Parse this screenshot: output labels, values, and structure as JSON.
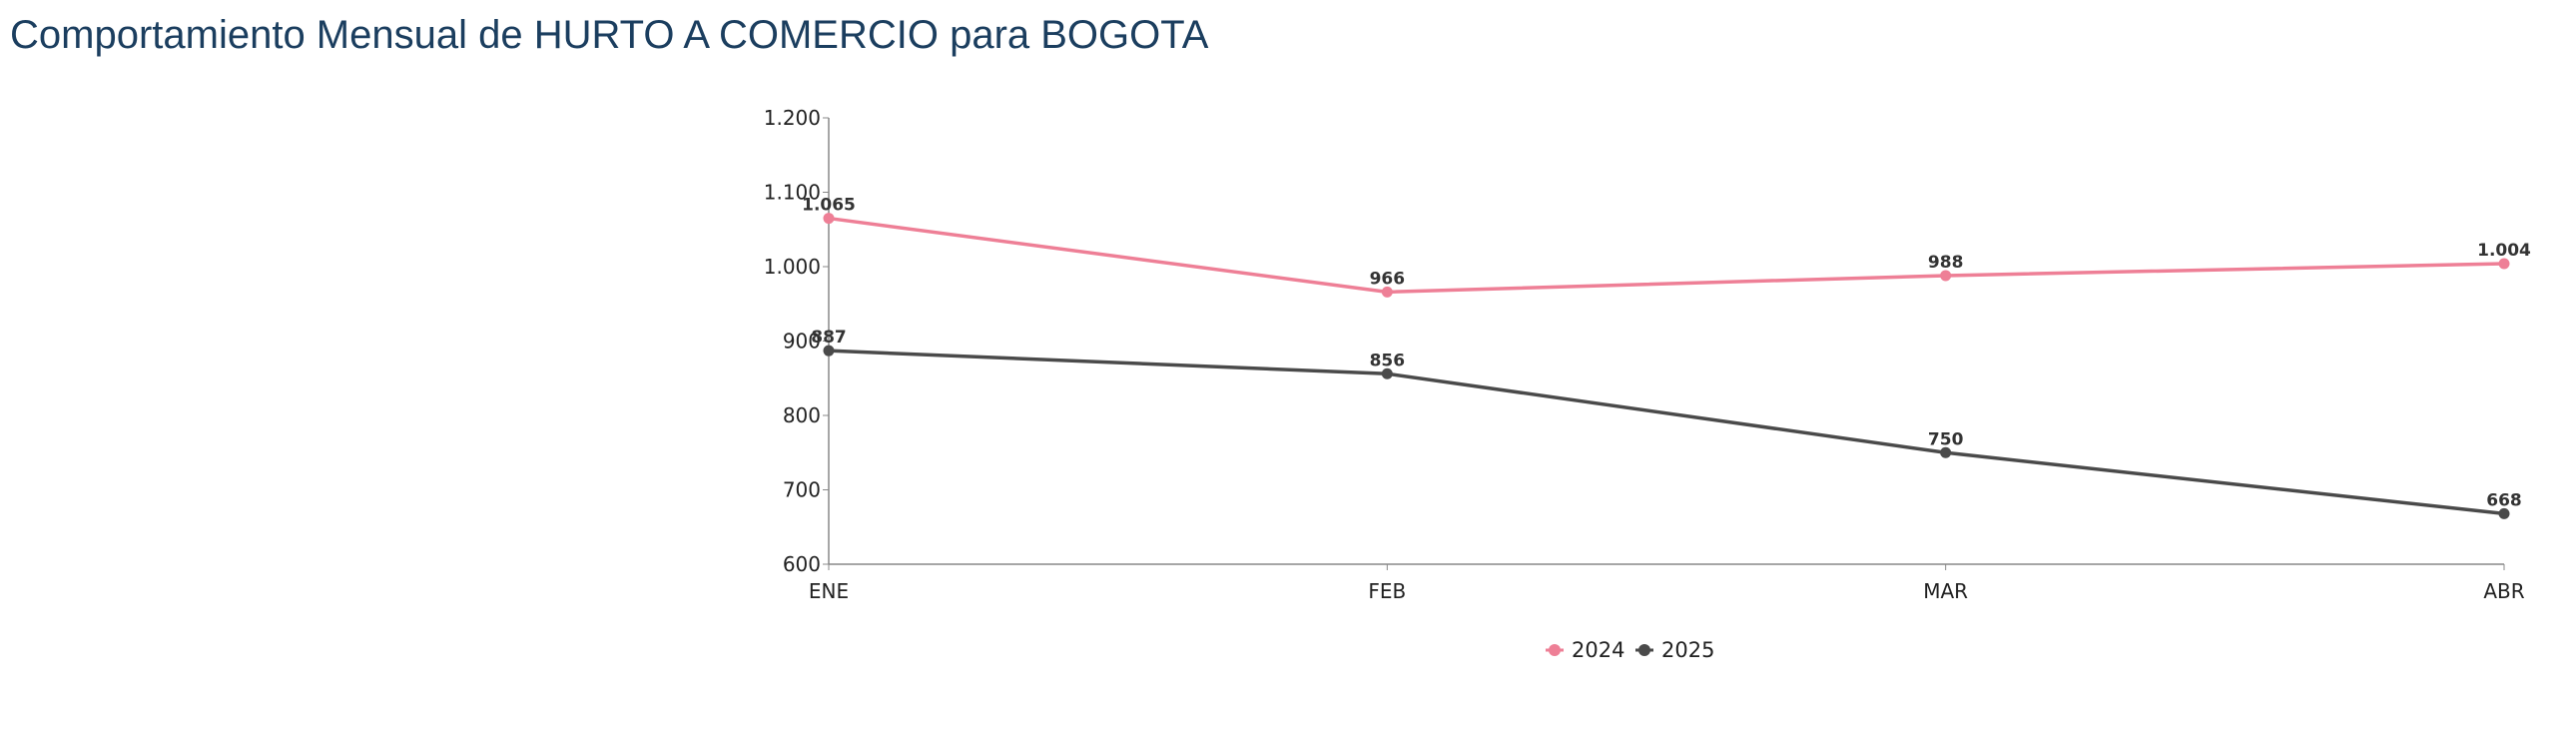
{
  "page": {
    "title": "Comportamiento Mensual de HURTO A COMERCIO para BOGOTA"
  },
  "chart_data": {
    "type": "line",
    "title": "Comportamiento Mensual de HURTO A COMERCIO para BOGOTA",
    "categories": [
      "ENE",
      "FEB",
      "MAR",
      "ABR"
    ],
    "series": [
      {
        "name": "2024",
        "color": "#ee7f96",
        "values": [
          1065,
          966,
          988,
          1004
        ],
        "labels": [
          "1.065",
          "966",
          "988",
          "1.004"
        ]
      },
      {
        "name": "2025",
        "color": "#4a4a4a",
        "values": [
          887,
          856,
          750,
          668
        ],
        "labels": [
          "887",
          "856",
          "750",
          "668"
        ]
      }
    ],
    "ylim": [
      600,
      1200
    ],
    "yticks": [
      600,
      700,
      800,
      900,
      1000,
      1100,
      1200
    ],
    "ytick_labels": [
      "600",
      "700",
      "800",
      "900",
      "1.000",
      "1.100",
      "1.200"
    ],
    "grid": false,
    "legend_position": "bottom-center",
    "xlabel": "",
    "ylabel": ""
  }
}
